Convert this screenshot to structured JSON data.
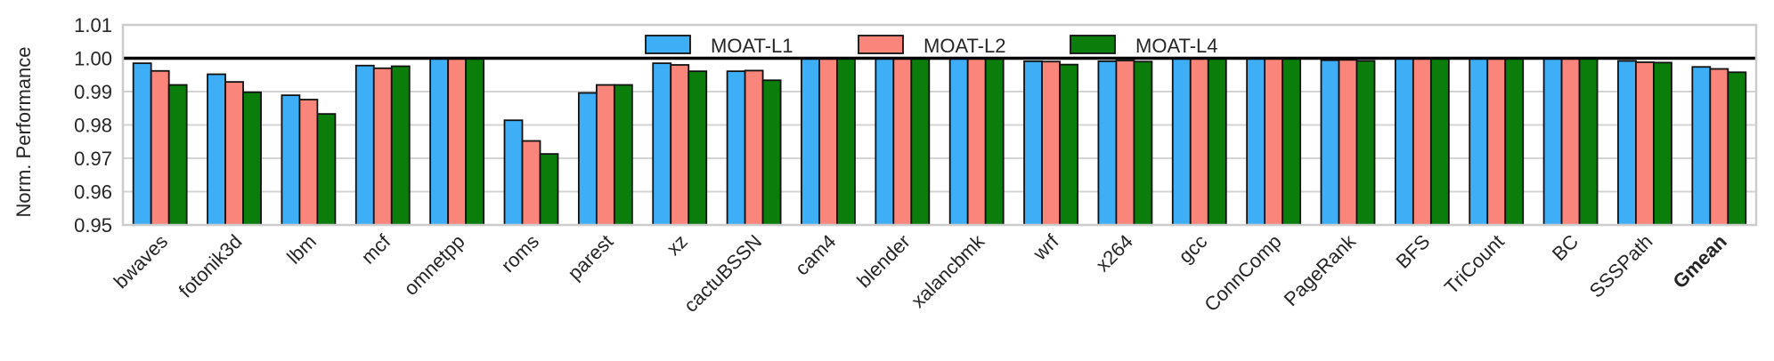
{
  "chart_data": {
    "type": "bar",
    "title": "",
    "xlabel": "",
    "ylabel": "Norm. Performance",
    "ylim": [
      0.95,
      1.01
    ],
    "yticks": [
      0.95,
      0.96,
      0.97,
      0.98,
      0.99,
      1.0,
      1.01
    ],
    "ytick_labels": [
      "0.95",
      "0.96",
      "0.97",
      "0.98",
      "0.99",
      "1.00",
      "1.01"
    ],
    "grid": true,
    "reference_line": 1.0,
    "legend_position": "top-center",
    "categories": [
      "bwaves",
      "fotonik3d",
      "lbm",
      "mcf",
      "omnetpp",
      "roms",
      "parest",
      "xz",
      "cactuBSSN",
      "cam4",
      "blender",
      "xalancbmk",
      "wrf",
      "x264",
      "gcc",
      "ConnComp",
      "PageRank",
      "BFS",
      "TriCount",
      "BC",
      "SSSPath",
      "Gmean"
    ],
    "bold_categories": [
      "Gmean"
    ],
    "series": [
      {
        "name": "MOAT-L1",
        "color": "#3EAEF7",
        "values": [
          0.9985,
          0.9952,
          0.9889,
          0.9978,
          1.0,
          0.9814,
          0.9896,
          0.9985,
          0.9961,
          1.0,
          1.0,
          1.0,
          0.9991,
          0.9991,
          1.0,
          1.0,
          0.9994,
          1.0,
          1.0,
          1.0,
          0.9992,
          0.9974
        ]
      },
      {
        "name": "MOAT-L2",
        "color": "#F9857B",
        "values": [
          0.9962,
          0.9929,
          0.9876,
          0.997,
          1.0,
          0.9752,
          0.992,
          0.998,
          0.9963,
          1.0,
          1.0,
          1.0,
          0.999,
          0.9993,
          1.0,
          1.0,
          0.9995,
          1.0,
          1.0,
          1.0,
          0.9988,
          0.9968
        ]
      },
      {
        "name": "MOAT-L4",
        "color": "#0A7D0A",
        "values": [
          0.992,
          0.9898,
          0.9833,
          0.9976,
          1.0,
          0.9713,
          0.992,
          0.9961,
          0.9934,
          1.0,
          1.0,
          1.0,
          0.9981,
          0.999,
          1.0,
          1.0,
          0.9992,
          1.0,
          1.0,
          1.0,
          0.9987,
          0.9958
        ]
      }
    ]
  }
}
